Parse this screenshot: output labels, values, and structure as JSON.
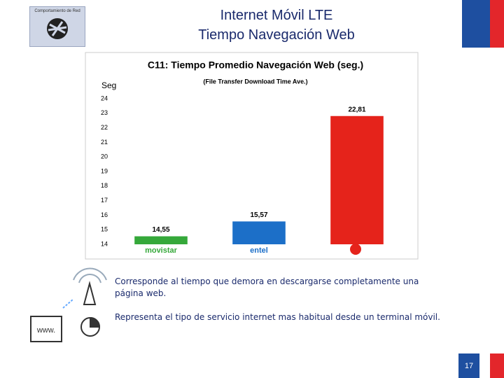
{
  "header": {
    "title": "Internet Móvil LTE",
    "subtitle": "Tiempo Navegación Web",
    "badge": "Comportamiento de Red"
  },
  "chart_data": {
    "type": "bar",
    "title": "C11: Tiempo Promedio Navegación Web (seg.)",
    "subtitle": "(File Transfer Download Time Ave.)",
    "y_label": "Seg",
    "categories": [
      "movistar",
      "entel",
      null
    ],
    "values": [
      14.55,
      15.57,
      22.81
    ],
    "value_labels": [
      "14,55",
      "15,57",
      "22,81"
    ],
    "colors": [
      "#35a83a",
      "#1c6fc8",
      "#e5231b"
    ],
    "ylim": [
      14,
      24
    ],
    "yticks": [
      14,
      15,
      16,
      17,
      18,
      19,
      20,
      21,
      22,
      23,
      24
    ],
    "grid": false
  },
  "notes": [
    "Corresponde al tiempo que demora en descargarse completamente una página web.",
    "Representa el tipo de servicio internet mas habitual desde un terminal móvil."
  ],
  "page_number": "17"
}
